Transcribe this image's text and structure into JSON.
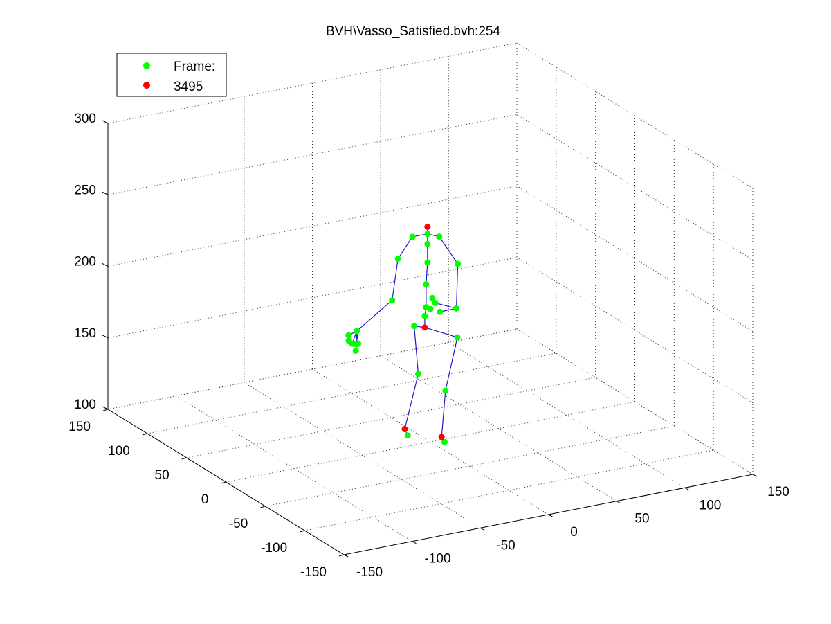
{
  "chart_data": {
    "type": "scatter",
    "title": "BVH\\Vasso_Satisfied.bvh:254",
    "xlabel": "",
    "ylabel": "",
    "zlabel": "",
    "xlim": [
      -150,
      150
    ],
    "ylim": [
      -150,
      150
    ],
    "zlim": [
      100,
      300
    ],
    "x_ticks": [
      "-150",
      "-100",
      "-50",
      "0",
      "50",
      "100",
      "150"
    ],
    "y_ticks": [
      "-150",
      "-100",
      "-50",
      "0",
      "50",
      "100",
      "150"
    ],
    "z_ticks": [
      "100",
      "150",
      "200",
      "250",
      "300"
    ],
    "grid": true,
    "legend_position": "top-left",
    "legend": [
      {
        "label": "Frame:",
        "color": "#00ff00"
      },
      {
        "label": "3495",
        "color": "#ff0000"
      }
    ],
    "colors": {
      "joint": "#00ff00",
      "end_site": "#ff0000",
      "bone": "#1a1acc"
    },
    "series": [
      {
        "name": "Frame:",
        "points": [
          [
            -5,
            -5,
            248
          ],
          [
            -12,
            2,
            245
          ],
          [
            3,
            -6,
            245
          ],
          [
            -5,
            -5,
            241
          ],
          [
            -18,
            10,
            228
          ],
          [
            12,
            -14,
            227
          ],
          [
            -5,
            -5,
            228
          ],
          [
            -6,
            -5,
            213
          ],
          [
            -20,
            14,
            198
          ],
          [
            11,
            -14,
            196
          ],
          [
            -6,
            -5,
            197
          ],
          [
            -7,
            -5,
            191
          ],
          [
            -1,
            -8,
            200
          ],
          [
            -2,
            -6,
            203
          ],
          [
            0,
            -12,
            195
          ],
          [
            -4,
            -7,
            196
          ],
          [
            -39,
            26,
            176
          ],
          [
            -41,
            33,
            171
          ],
          [
            -40,
            30,
            166
          ],
          [
            -38,
            26,
            167
          ],
          [
            -37,
            30,
            165
          ],
          [
            -38,
            29,
            161
          ],
          [
            -42,
            31,
            168
          ],
          [
            -9,
            5,
            181
          ],
          [
            10,
            -17,
            177
          ],
          [
            -6,
            5,
            147
          ],
          [
            3,
            -14,
            140
          ],
          [
            -12,
            8,
            104
          ],
          [
            0,
            -18,
            106
          ]
        ]
      },
      {
        "name": "3495",
        "points": [
          [
            -5,
            -5,
            253
          ],
          [
            -7,
            -5,
            183
          ],
          [
            -13,
            10,
            108
          ],
          [
            -1,
            -16,
            109
          ]
        ]
      }
    ],
    "bones": [
      [
        [
          -5,
          -5,
          253
        ],
        [
          -5,
          -5,
          248
        ]
      ],
      [
        [
          -5,
          -5,
          248
        ],
        [
          -12,
          2,
          245
        ]
      ],
      [
        [
          -5,
          -5,
          248
        ],
        [
          3,
          -6,
          245
        ]
      ],
      [
        [
          -5,
          -5,
          248
        ],
        [
          -5,
          -5,
          241
        ]
      ],
      [
        [
          -12,
          2,
          245
        ],
        [
          -18,
          10,
          228
        ]
      ],
      [
        [
          -18,
          10,
          228
        ],
        [
          -20,
          14,
          198
        ]
      ],
      [
        [
          -20,
          14,
          198
        ],
        [
          -39,
          26,
          176
        ]
      ],
      [
        [
          -39,
          26,
          176
        ],
        [
          -41,
          33,
          171
        ]
      ],
      [
        [
          -39,
          26,
          176
        ],
        [
          -40,
          30,
          166
        ]
      ],
      [
        [
          -39,
          26,
          176
        ],
        [
          -38,
          26,
          167
        ]
      ],
      [
        [
          -39,
          26,
          176
        ],
        [
          -37,
          30,
          165
        ]
      ],
      [
        [
          3,
          -6,
          245
        ],
        [
          12,
          -14,
          227
        ]
      ],
      [
        [
          12,
          -14,
          227
        ],
        [
          11,
          -14,
          196
        ]
      ],
      [
        [
          11,
          -14,
          196
        ],
        [
          -1,
          -8,
          200
        ]
      ],
      [
        [
          11,
          -14,
          196
        ],
        [
          0,
          -12,
          195
        ]
      ],
      [
        [
          -5,
          -5,
          241
        ],
        [
          -5,
          -5,
          228
        ]
      ],
      [
        [
          -5,
          -5,
          228
        ],
        [
          -6,
          -5,
          213
        ]
      ],
      [
        [
          -6,
          -5,
          213
        ],
        [
          -6,
          -5,
          197
        ]
      ],
      [
        [
          -6,
          -5,
          197
        ],
        [
          -7,
          -5,
          191
        ]
      ],
      [
        [
          -7,
          -5,
          191
        ],
        [
          -7,
          -5,
          183
        ]
      ],
      [
        [
          -7,
          -5,
          183
        ],
        [
          -9,
          5,
          181
        ]
      ],
      [
        [
          -9,
          5,
          181
        ],
        [
          -6,
          5,
          147
        ]
      ],
      [
        [
          -6,
          5,
          147
        ],
        [
          -13,
          10,
          108
        ]
      ],
      [
        [
          -13,
          10,
          108
        ],
        [
          -12,
          8,
          104
        ]
      ],
      [
        [
          -7,
          -5,
          183
        ],
        [
          10,
          -17,
          177
        ]
      ],
      [
        [
          10,
          -17,
          177
        ],
        [
          3,
          -14,
          140
        ]
      ],
      [
        [
          3,
          -14,
          140
        ],
        [
          -1,
          -16,
          109
        ]
      ],
      [
        [
          -1,
          -16,
          109
        ],
        [
          0,
          -18,
          106
        ]
      ]
    ]
  }
}
